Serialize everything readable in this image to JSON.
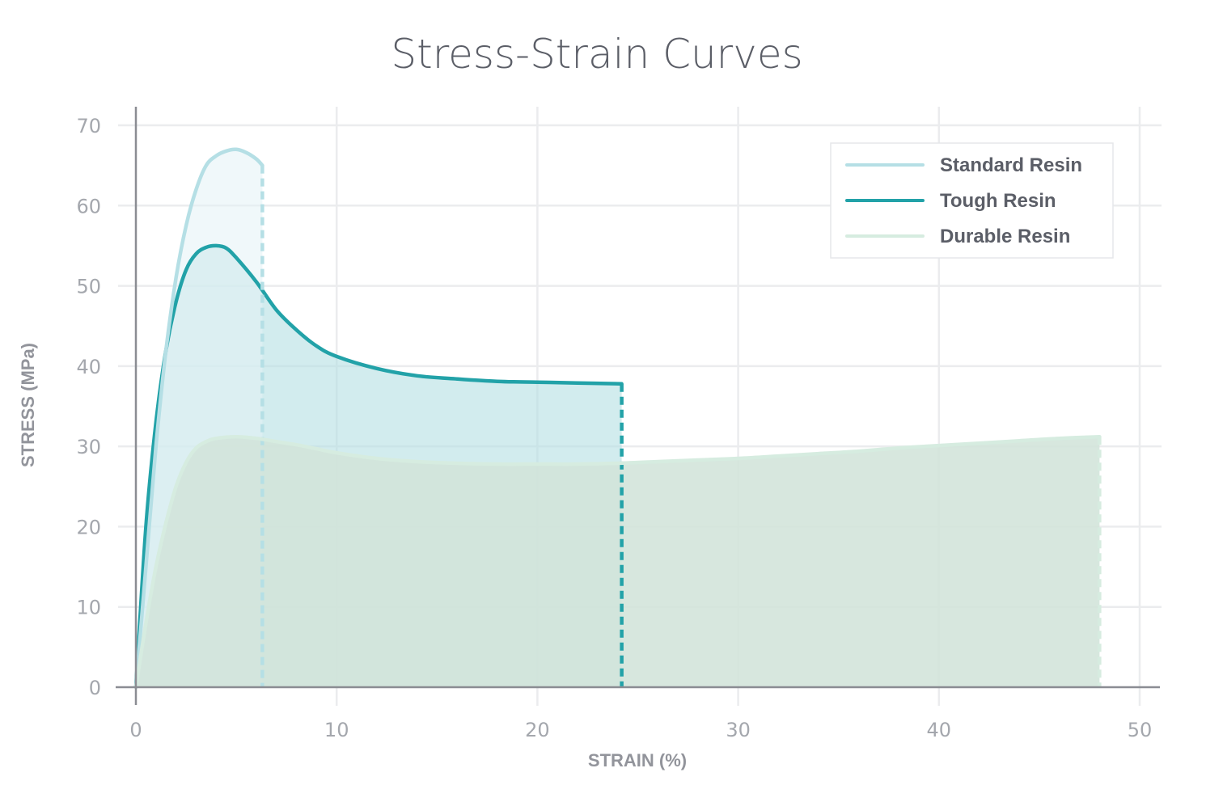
{
  "chart_data": {
    "type": "area",
    "title": "Stress-Strain Curves",
    "xlabel": "STRAIN (%)",
    "ylabel": "STRESS (MPa)",
    "xlim": [
      0,
      50
    ],
    "ylim": [
      0,
      70
    ],
    "xticks": [
      0,
      10,
      20,
      30,
      40,
      50
    ],
    "yticks": [
      0,
      10,
      20,
      30,
      40,
      50,
      60,
      70
    ],
    "grid": true,
    "legend_position": "top-right",
    "series": [
      {
        "name": "Tough Resin",
        "color": "#22a2a8",
        "fill": "#b4e0e2",
        "fill_opacity": 0.6,
        "break_strain": 24.2,
        "points": [
          [
            0,
            0
          ],
          [
            0.5,
            20
          ],
          [
            1,
            33
          ],
          [
            1.5,
            42
          ],
          [
            2,
            48
          ],
          [
            2.5,
            52
          ],
          [
            3,
            54
          ],
          [
            3.5,
            54.8
          ],
          [
            4,
            55
          ],
          [
            4.5,
            54.7
          ],
          [
            5,
            53.5
          ],
          [
            6,
            50.5
          ],
          [
            7,
            47
          ],
          [
            8,
            44.5
          ],
          [
            9,
            42.5
          ],
          [
            10,
            41.2
          ],
          [
            12,
            39.7
          ],
          [
            14,
            38.8
          ],
          [
            16,
            38.4
          ],
          [
            18,
            38.1
          ],
          [
            20,
            38
          ],
          [
            22,
            37.9
          ],
          [
            24.2,
            37.8
          ]
        ]
      },
      {
        "name": "Standard Resin",
        "color": "#b5dfe5",
        "fill": "#e4f3f5",
        "fill_opacity": 0.55,
        "break_strain": 6.3,
        "points": [
          [
            0,
            0
          ],
          [
            0.5,
            15
          ],
          [
            1,
            30
          ],
          [
            1.5,
            42
          ],
          [
            2,
            51
          ],
          [
            2.5,
            57.5
          ],
          [
            3,
            62
          ],
          [
            3.5,
            65
          ],
          [
            4,
            66.2
          ],
          [
            4.5,
            66.8
          ],
          [
            5,
            67
          ],
          [
            5.5,
            66.6
          ],
          [
            6,
            65.8
          ],
          [
            6.3,
            65
          ]
        ]
      },
      {
        "name": "Durable Resin",
        "color": "#d6ece0",
        "fill": "#d2e4da",
        "fill_opacity": 0.88,
        "break_strain": 48,
        "points": [
          [
            0,
            0
          ],
          [
            0.5,
            8
          ],
          [
            1,
            15
          ],
          [
            1.5,
            20.5
          ],
          [
            2,
            25
          ],
          [
            2.5,
            28
          ],
          [
            3,
            29.8
          ],
          [
            3.5,
            30.6
          ],
          [
            4,
            31
          ],
          [
            5,
            31.2
          ],
          [
            6,
            31
          ],
          [
            7,
            30.6
          ],
          [
            8,
            30.2
          ],
          [
            9,
            29.7
          ],
          [
            10,
            29.2
          ],
          [
            12,
            28.5
          ],
          [
            14,
            28.1
          ],
          [
            16,
            27.9
          ],
          [
            18,
            27.8
          ],
          [
            20,
            27.8
          ],
          [
            22,
            27.8
          ],
          [
            24,
            27.9
          ],
          [
            26,
            28.1
          ],
          [
            28,
            28.3
          ],
          [
            30,
            28.5
          ],
          [
            32,
            28.8
          ],
          [
            34,
            29.1
          ],
          [
            36,
            29.4
          ],
          [
            38,
            29.8
          ],
          [
            40,
            30.1
          ],
          [
            42,
            30.4
          ],
          [
            44,
            30.7
          ],
          [
            46,
            31
          ],
          [
            48,
            31.2
          ]
        ]
      }
    ],
    "legend": [
      "Standard Resin",
      "Tough Resin",
      "Durable Resin"
    ]
  }
}
